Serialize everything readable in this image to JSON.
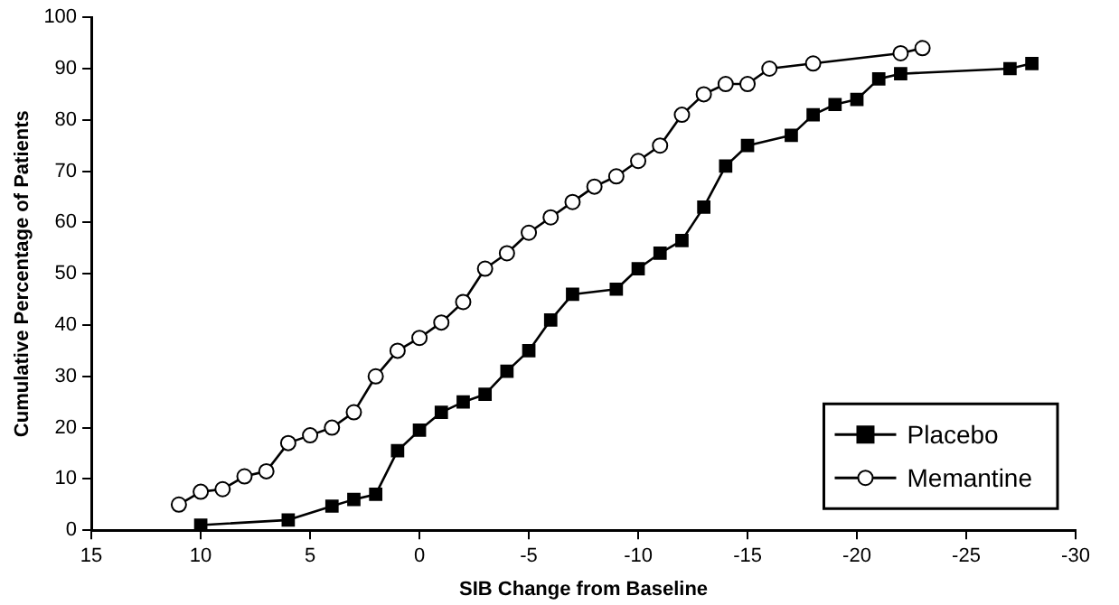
{
  "chart_data": {
    "type": "line",
    "xlabel": "SIB Change from Baseline",
    "ylabel": "Cumulative Percentage of Patients",
    "xlim": [
      15,
      -30
    ],
    "xticks": [
      15,
      10,
      5,
      0,
      -5,
      -10,
      -15,
      -20,
      -25,
      -30
    ],
    "ylim": [
      0,
      100
    ],
    "yticks": [
      0,
      10,
      20,
      30,
      40,
      50,
      60,
      70,
      80,
      90,
      100
    ],
    "grid": false,
    "legend": "bottom right",
    "line_style": "solid",
    "series": [
      {
        "name": "Placebo",
        "color": "#000000",
        "marker": "square",
        "x": [
          10,
          6,
          4,
          3,
          2,
          1,
          0,
          -1,
          -2,
          -3,
          -4,
          -5,
          -6,
          -7,
          -9,
          -10,
          -11,
          -12,
          -13,
          -14,
          -15,
          -17,
          -18,
          -19,
          -20,
          -21,
          -22,
          -27,
          -28
        ],
        "values": [
          1,
          2,
          4.7,
          6,
          7,
          15.5,
          19.5,
          23,
          25,
          26.5,
          31,
          35,
          41,
          46,
          47,
          51,
          54,
          56.5,
          63,
          71,
          75,
          77,
          81,
          83,
          84,
          88,
          89,
          90,
          91
        ]
      },
      {
        "name": "Memantine",
        "color": "#000000",
        "marker": "circle",
        "x": [
          11,
          10,
          9,
          8,
          7,
          6,
          5,
          4,
          3,
          2,
          1,
          0,
          -1,
          -2,
          -3,
          -4,
          -5,
          -6,
          -7,
          -8,
          -9,
          -10,
          -11,
          -12,
          -13,
          -14,
          -15,
          -16,
          -18,
          -22,
          -23
        ],
        "values": [
          5,
          7.5,
          8,
          10.5,
          11.5,
          17,
          18.5,
          20,
          23,
          30,
          35,
          37.5,
          40.5,
          44.5,
          51,
          54,
          58,
          61,
          64,
          67,
          69,
          72,
          75,
          81,
          85,
          87,
          87,
          90,
          91,
          93,
          94
        ]
      }
    ]
  }
}
